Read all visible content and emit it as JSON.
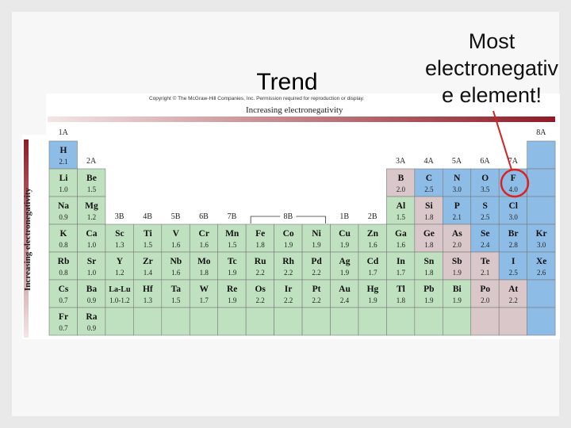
{
  "slide": {
    "title": "Trend",
    "annotation": [
      "Most",
      "electronegativ",
      "e element!"
    ],
    "copyright": "Copyright © The McGraw-Hill Companies, Inc. Permission required for reproduction or display.",
    "top_arrow_label": "Increasing electronegativity",
    "side_arrow_label": "Increasing electronegativity"
  },
  "table": {
    "group_labels": [
      "1A",
      "2A",
      "3B",
      "4B",
      "5B",
      "6B",
      "7B",
      "8B",
      "1B",
      "2B",
      "3A",
      "4A",
      "5A",
      "6A",
      "7A",
      "8A"
    ],
    "rows": [
      [
        {
          "symbol": "H",
          "en": "2.1",
          "color": "#8dbce6"
        },
        null,
        null,
        null,
        null,
        null,
        null,
        null,
        null,
        null,
        null,
        null,
        null,
        null,
        null,
        null,
        null,
        {
          "color": "#8dbce6"
        }
      ],
      [
        {
          "symbol": "Li",
          "en": "1.0",
          "color": "#bfe1bf"
        },
        {
          "symbol": "Be",
          "en": "1.5",
          "color": "#bfe1bf"
        },
        null,
        null,
        null,
        null,
        null,
        null,
        null,
        null,
        null,
        null,
        {
          "symbol": "B",
          "en": "2.0",
          "color": "#dac7c9"
        },
        {
          "symbol": "C",
          "en": "2.5",
          "color": "#8dbce6"
        },
        {
          "symbol": "N",
          "en": "3.0",
          "color": "#8dbce6"
        },
        {
          "symbol": "O",
          "en": "3.5",
          "color": "#8dbce6"
        },
        {
          "symbol": "F",
          "en": "4.0",
          "color": "#8dbce6"
        },
        {
          "color": "#8dbce6"
        }
      ],
      [
        {
          "symbol": "Na",
          "en": "0.9",
          "color": "#bfe1bf"
        },
        {
          "symbol": "Mg",
          "en": "1.2",
          "color": "#bfe1bf"
        },
        null,
        null,
        null,
        null,
        null,
        null,
        null,
        null,
        null,
        null,
        {
          "symbol": "Al",
          "en": "1.5",
          "color": "#bfe1bf"
        },
        {
          "symbol": "Si",
          "en": "1.8",
          "color": "#dac7c9"
        },
        {
          "symbol": "P",
          "en": "2.1",
          "color": "#8dbce6"
        },
        {
          "symbol": "S",
          "en": "2.5",
          "color": "#8dbce6"
        },
        {
          "symbol": "Cl",
          "en": "3.0",
          "color": "#8dbce6"
        },
        {
          "color": "#8dbce6"
        }
      ],
      [
        {
          "symbol": "K",
          "en": "0.8",
          "color": "#bfe1bf"
        },
        {
          "symbol": "Ca",
          "en": "1.0",
          "color": "#bfe1bf"
        },
        {
          "symbol": "Sc",
          "en": "1.3",
          "color": "#bfe1bf"
        },
        {
          "symbol": "Ti",
          "en": "1.5",
          "color": "#bfe1bf"
        },
        {
          "symbol": "V",
          "en": "1.6",
          "color": "#bfe1bf"
        },
        {
          "symbol": "Cr",
          "en": "1.6",
          "color": "#bfe1bf"
        },
        {
          "symbol": "Mn",
          "en": "1.5",
          "color": "#bfe1bf"
        },
        {
          "symbol": "Fe",
          "en": "1.8",
          "color": "#bfe1bf"
        },
        {
          "symbol": "Co",
          "en": "1.9",
          "color": "#bfe1bf"
        },
        {
          "symbol": "Ni",
          "en": "1.9",
          "color": "#bfe1bf"
        },
        {
          "symbol": "Cu",
          "en": "1.9",
          "color": "#bfe1bf"
        },
        {
          "symbol": "Zn",
          "en": "1.6",
          "color": "#bfe1bf"
        },
        {
          "symbol": "Ga",
          "en": "1.6",
          "color": "#bfe1bf"
        },
        {
          "symbol": "Ge",
          "en": "1.8",
          "color": "#dac7c9"
        },
        {
          "symbol": "As",
          "en": "2.0",
          "color": "#dac7c9"
        },
        {
          "symbol": "Se",
          "en": "2.4",
          "color": "#8dbce6"
        },
        {
          "symbol": "Br",
          "en": "2.8",
          "color": "#8dbce6"
        },
        {
          "symbol": "Kr",
          "en": "3.0",
          "color": "#8dbce6"
        }
      ],
      [
        {
          "symbol": "Rb",
          "en": "0.8",
          "color": "#bfe1bf"
        },
        {
          "symbol": "Sr",
          "en": "1.0",
          "color": "#bfe1bf"
        },
        {
          "symbol": "Y",
          "en": "1.2",
          "color": "#bfe1bf"
        },
        {
          "symbol": "Zr",
          "en": "1.4",
          "color": "#bfe1bf"
        },
        {
          "symbol": "Nb",
          "en": "1.6",
          "color": "#bfe1bf"
        },
        {
          "symbol": "Mo",
          "en": "1.8",
          "color": "#bfe1bf"
        },
        {
          "symbol": "Tc",
          "en": "1.9",
          "color": "#bfe1bf"
        },
        {
          "symbol": "Ru",
          "en": "2.2",
          "color": "#bfe1bf"
        },
        {
          "symbol": "Rh",
          "en": "2.2",
          "color": "#bfe1bf"
        },
        {
          "symbol": "Pd",
          "en": "2.2",
          "color": "#bfe1bf"
        },
        {
          "symbol": "Ag",
          "en": "1.9",
          "color": "#bfe1bf"
        },
        {
          "symbol": "Cd",
          "en": "1.7",
          "color": "#bfe1bf"
        },
        {
          "symbol": "In",
          "en": "1.7",
          "color": "#bfe1bf"
        },
        {
          "symbol": "Sn",
          "en": "1.8",
          "color": "#bfe1bf"
        },
        {
          "symbol": "Sb",
          "en": "1.9",
          "color": "#dac7c9"
        },
        {
          "symbol": "Te",
          "en": "2.1",
          "color": "#dac7c9"
        },
        {
          "symbol": "I",
          "en": "2.5",
          "color": "#8dbce6"
        },
        {
          "symbol": "Xe",
          "en": "2.6",
          "color": "#8dbce6"
        }
      ],
      [
        {
          "symbol": "Cs",
          "en": "0.7",
          "color": "#bfe1bf"
        },
        {
          "symbol": "Ba",
          "en": "0.9",
          "color": "#bfe1bf"
        },
        {
          "symbol": "La-Lu",
          "en": "1.0-1.2",
          "color": "#bfe1bf"
        },
        {
          "symbol": "Hf",
          "en": "1.3",
          "color": "#bfe1bf"
        },
        {
          "symbol": "Ta",
          "en": "1.5",
          "color": "#bfe1bf"
        },
        {
          "symbol": "W",
          "en": "1.7",
          "color": "#bfe1bf"
        },
        {
          "symbol": "Re",
          "en": "1.9",
          "color": "#bfe1bf"
        },
        {
          "symbol": "Os",
          "en": "2.2",
          "color": "#bfe1bf"
        },
        {
          "symbol": "Ir",
          "en": "2.2",
          "color": "#bfe1bf"
        },
        {
          "symbol": "Pt",
          "en": "2.2",
          "color": "#bfe1bf"
        },
        {
          "symbol": "Au",
          "en": "2.4",
          "color": "#bfe1bf"
        },
        {
          "symbol": "Hg",
          "en": "1.9",
          "color": "#bfe1bf"
        },
        {
          "symbol": "Tl",
          "en": "1.8",
          "color": "#bfe1bf"
        },
        {
          "symbol": "Pb",
          "en": "1.9",
          "color": "#bfe1bf"
        },
        {
          "symbol": "Bi",
          "en": "1.9",
          "color": "#bfe1bf"
        },
        {
          "symbol": "Po",
          "en": "2.0",
          "color": "#dac7c9"
        },
        {
          "symbol": "At",
          "en": "2.2",
          "color": "#dac7c9"
        },
        {
          "color": "#8dbce6"
        }
      ],
      [
        {
          "symbol": "Fr",
          "en": "0.7",
          "color": "#bfe1bf"
        },
        {
          "symbol": "Ra",
          "en": "0.9",
          "color": "#bfe1bf"
        },
        {
          "color": "#bfe1bf"
        },
        {
          "color": "#bfe1bf"
        },
        {
          "color": "#bfe1bf"
        },
        {
          "color": "#bfe1bf"
        },
        {
          "color": "#bfe1bf"
        },
        {
          "color": "#bfe1bf"
        },
        {
          "color": "#bfe1bf"
        },
        {
          "color": "#bfe1bf"
        },
        {
          "color": "#bfe1bf"
        },
        {
          "color": "#bfe1bf"
        },
        {
          "color": "#bfe1bf"
        },
        {
          "color": "#bfe1bf"
        },
        {
          "color": "#bfe1bf"
        },
        {
          "color": "#dac7c9"
        },
        {
          "color": "#dac7c9"
        },
        {
          "color": "#8dbce6"
        }
      ]
    ]
  }
}
